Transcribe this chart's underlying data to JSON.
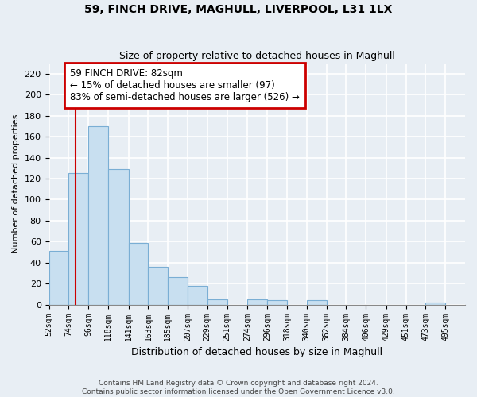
{
  "title1": "59, FINCH DRIVE, MAGHULL, LIVERPOOL, L31 1LX",
  "title2": "Size of property relative to detached houses in Maghull",
  "xlabel": "Distribution of detached houses by size in Maghull",
  "ylabel": "Number of detached properties",
  "bar_left_edges": [
    52,
    74,
    96,
    118,
    141,
    163,
    185,
    207,
    229,
    251,
    274,
    296,
    318,
    340,
    362,
    384,
    406,
    429,
    451,
    473
  ],
  "bar_heights": [
    51,
    125,
    170,
    129,
    59,
    36,
    26,
    18,
    5,
    0,
    5,
    4,
    0,
    4,
    0,
    0,
    0,
    0,
    0,
    2
  ],
  "bar_widths": [
    22,
    22,
    22,
    23,
    22,
    22,
    22,
    22,
    22,
    23,
    22,
    22,
    22,
    22,
    22,
    22,
    23,
    22,
    22,
    22
  ],
  "tick_labels": [
    "52sqm",
    "74sqm",
    "96sqm",
    "118sqm",
    "141sqm",
    "163sqm",
    "185sqm",
    "207sqm",
    "229sqm",
    "251sqm",
    "274sqm",
    "296sqm",
    "318sqm",
    "340sqm",
    "362sqm",
    "384sqm",
    "406sqm",
    "429sqm",
    "451sqm",
    "473sqm",
    "495sqm"
  ],
  "tick_positions": [
    52,
    74,
    96,
    118,
    141,
    163,
    185,
    207,
    229,
    251,
    274,
    296,
    318,
    340,
    362,
    384,
    406,
    429,
    451,
    473,
    495
  ],
  "bar_color": "#c8dff0",
  "bar_edge_color": "#7aaed4",
  "property_line_x": 82,
  "property_line_color": "#cc0000",
  "ylim": [
    0,
    230
  ],
  "xlim": [
    52,
    517
  ],
  "yticks": [
    0,
    20,
    40,
    60,
    80,
    100,
    120,
    140,
    160,
    180,
    200,
    220
  ],
  "annotation_title": "59 FINCH DRIVE: 82sqm",
  "annotation_line1": "← 15% of detached houses are smaller (97)",
  "annotation_line2": "83% of semi-detached houses are larger (526) →",
  "footer1": "Contains HM Land Registry data © Crown copyright and database right 2024.",
  "footer2": "Contains public sector information licensed under the Open Government Licence v3.0.",
  "background_color": "#e8eef4",
  "plot_bg_color": "#e8eef4",
  "grid_color": "#c8d4e0"
}
